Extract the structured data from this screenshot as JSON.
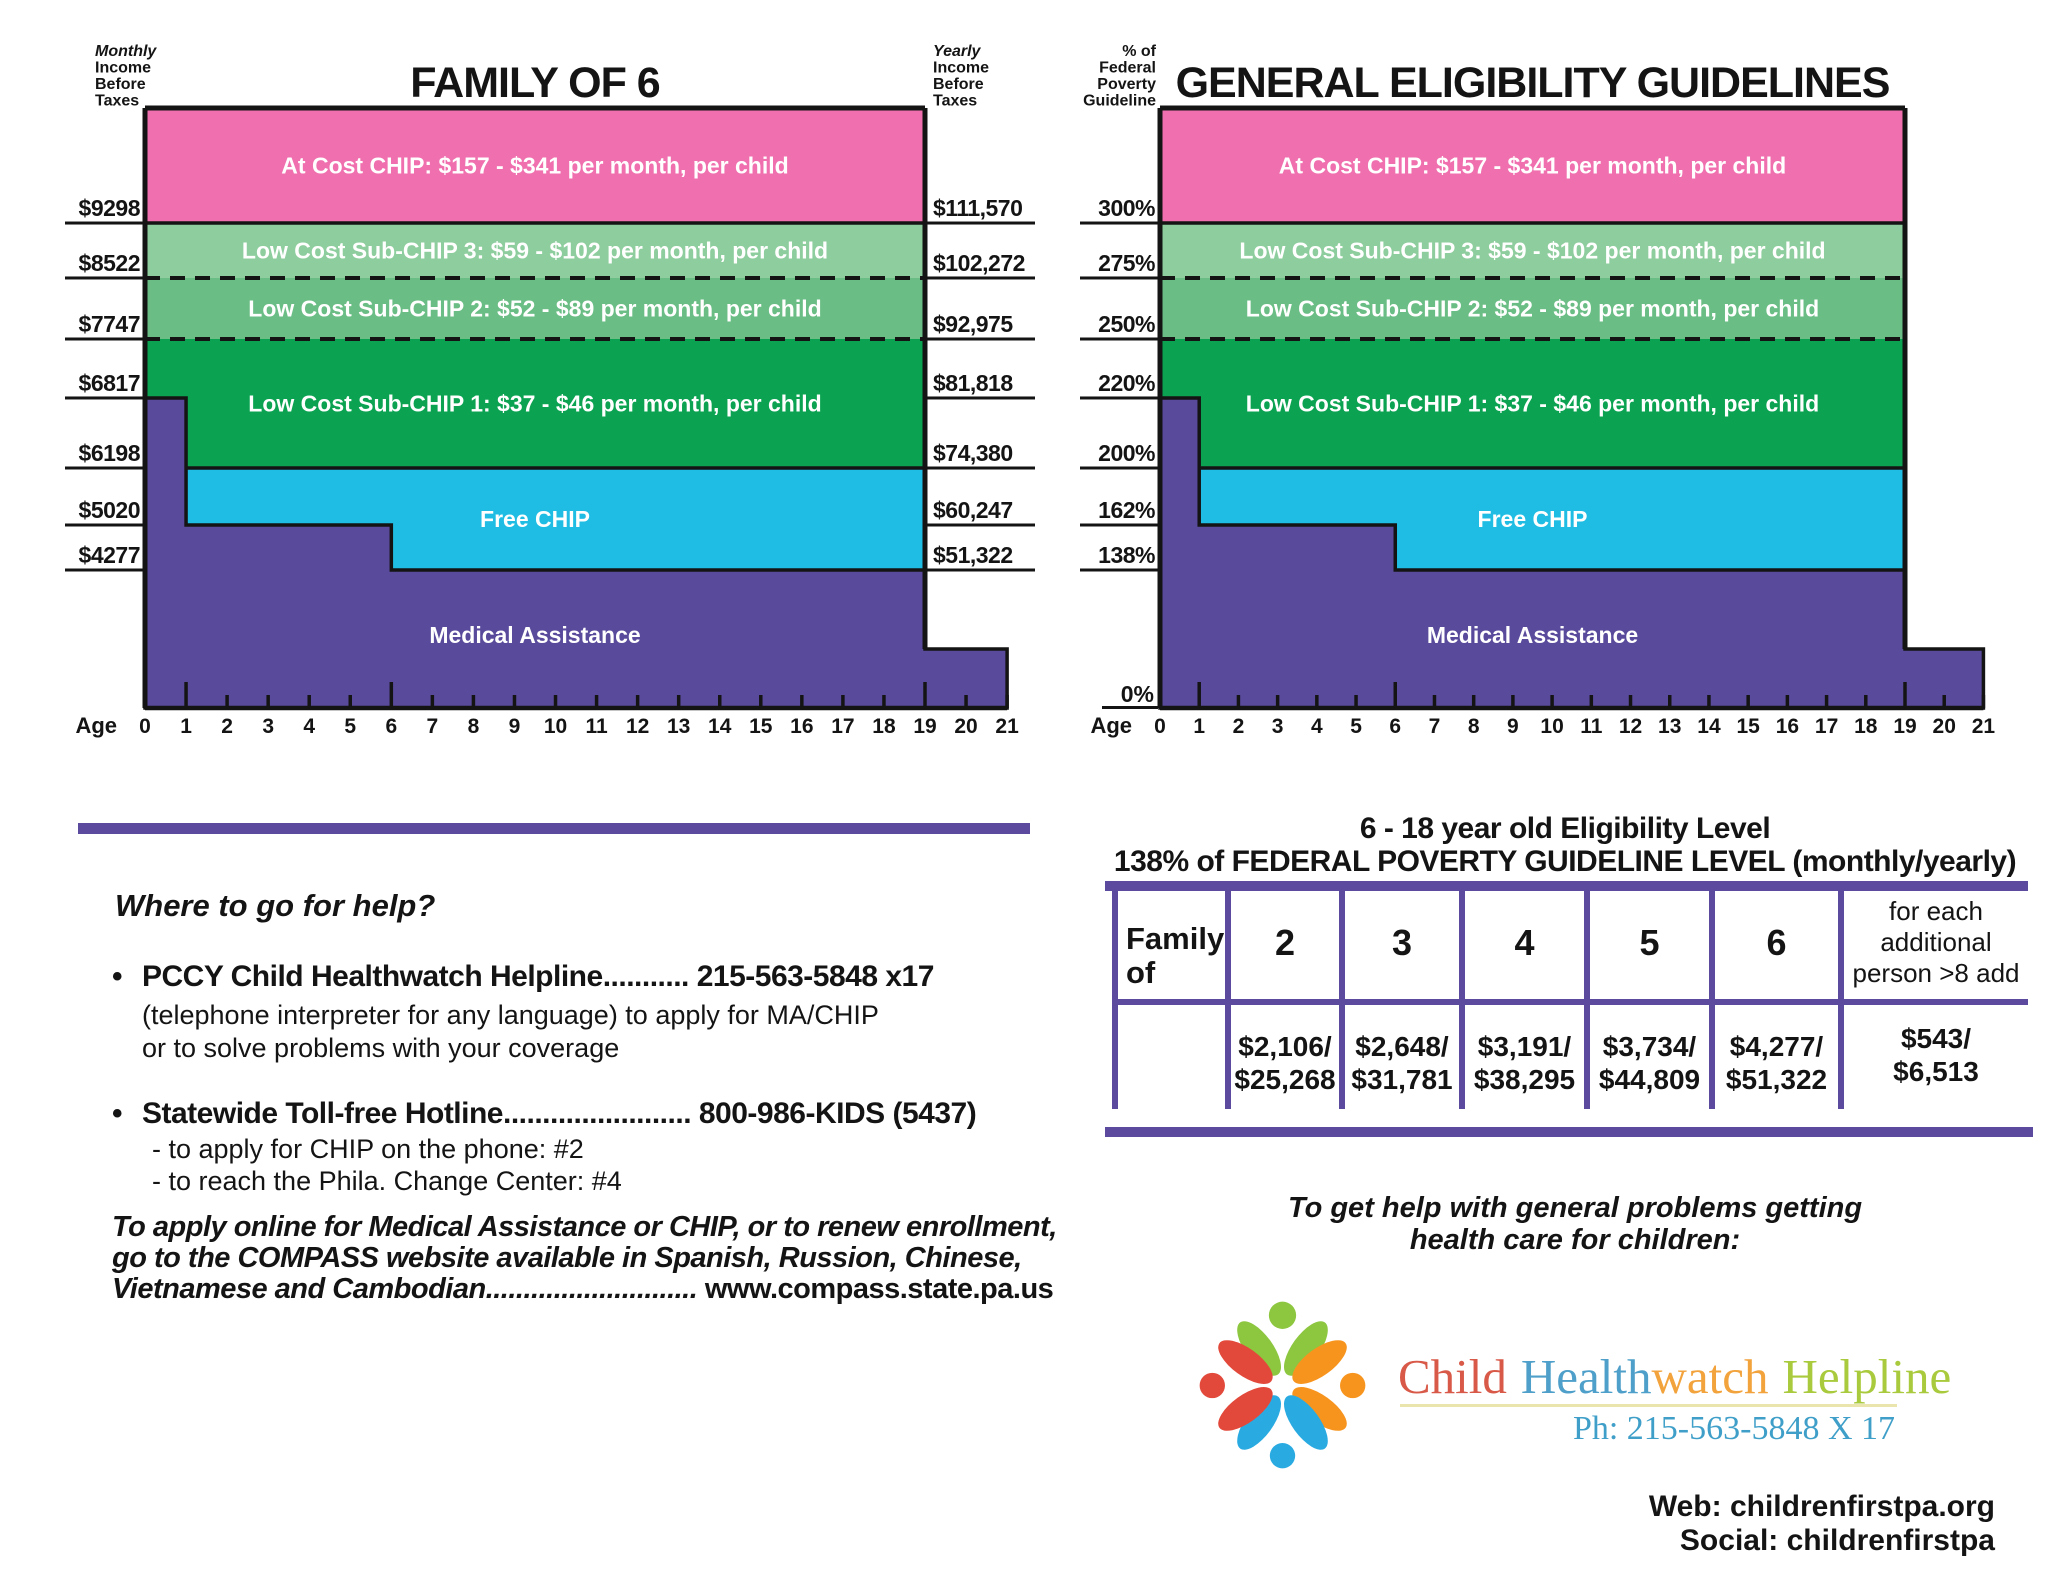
{
  "charts": [
    {
      "title": "FAMILY OF 6",
      "left_axis_header": [
        "Monthly",
        "Income",
        "Before",
        "Taxes"
      ],
      "left_axis_header_italic_first": true,
      "right_axis_header": [
        "Yearly",
        "Income",
        "Before",
        "Taxes"
      ],
      "left_labels": [
        "$9298",
        "$8522",
        "$7747",
        "$6817",
        "$6198",
        "$5020",
        "$4277"
      ],
      "right_labels": [
        "$111,570",
        "$102,272",
        "$92,975",
        "$81,818",
        "$74,380",
        "$60,247",
        "$51,322"
      ],
      "zero_label": ""
    },
    {
      "title": "GENERAL ELIGIBILITY GUIDELINES",
      "left_axis_header": [
        "% of",
        "Federal",
        "Poverty",
        "Guideline"
      ],
      "left_axis_header_italic_first": false,
      "right_axis_header": [],
      "left_labels": [
        "300%",
        "275%",
        "250%",
        "220%",
        "200%",
        "162%",
        "138%"
      ],
      "right_labels": [],
      "zero_label": "0%"
    }
  ],
  "chart_data": {
    "type": "area",
    "title": "PA CHIP / Medical Assistance eligibility by age and income, family of 6",
    "xlabel": "Age",
    "age_axis": {
      "label": "Age",
      "min": 0,
      "max": 21,
      "main_area_end_age": 19,
      "tall_tick_ages": [
        1,
        6,
        19
      ]
    },
    "levels": [
      {
        "pct": "300%",
        "monthly": "$9298",
        "yearly": "$111,570",
        "y_frac": 0.1917,
        "line": "solid"
      },
      {
        "pct": "275%",
        "monthly": "$8522",
        "yearly": "$102,272",
        "y_frac": 0.2833,
        "line": "dashed"
      },
      {
        "pct": "250%",
        "monthly": "$7747",
        "yearly": "$92,975",
        "y_frac": 0.385,
        "line": "dashed"
      },
      {
        "pct": "220%",
        "monthly": "$6817",
        "yearly": "$81,818",
        "y_frac": 0.4833,
        "line": "none"
      },
      {
        "pct": "200%",
        "monthly": "$6198",
        "yearly": "$74,380",
        "y_frac": 0.6,
        "line": "solid"
      },
      {
        "pct": "162%",
        "monthly": "$5020",
        "yearly": "$60,247",
        "y_frac": 0.695,
        "line": "none"
      },
      {
        "pct": "138%",
        "monthly": "$4277",
        "yearly": "$51,322",
        "y_frac": 0.77,
        "line": "none"
      }
    ],
    "ma_19_21_top_frac": 0.9017,
    "bands": [
      {
        "label": "At Cost CHIP: $157 - $341 per month, per child",
        "color": "#f06fae",
        "from": "top",
        "to": "300%"
      },
      {
        "label": "Low Cost Sub-CHIP 3: $59 - $102 per month, per child",
        "color": "#8ecd9d",
        "from": "300%",
        "to": "275%"
      },
      {
        "label": "Low Cost Sub-CHIP 2: $52 - $89 per month, per child",
        "color": "#6abd84",
        "from": "275%",
        "to": "250%"
      },
      {
        "label": "Low Cost Sub-CHIP 1: $37 - $46 per month, per child",
        "color": "#0ba351",
        "from": "250%",
        "to": "200%"
      },
      {
        "label": "Free CHIP",
        "color": "#1fbde3",
        "from": "200%",
        "to": "138%"
      },
      {
        "label": "Medical Assistance",
        "color": "#5a4a9c",
        "from": "138%",
        "to": "bottom"
      }
    ],
    "medical_assistance_steps": [
      {
        "age_from": 0,
        "age_to": 1,
        "top_level": "220%"
      },
      {
        "age_from": 1,
        "age_to": 6,
        "top_level": "162%"
      },
      {
        "age_from": 6,
        "age_to": 19,
        "top_level": "138%"
      },
      {
        "age_from": 19,
        "age_to": 21,
        "top_level": "low"
      }
    ]
  },
  "help": {
    "heading": "Where to go for help?",
    "bullet_glyph": "•",
    "items": [
      {
        "bold": "PCCY Child Healthwatch Helpline........... 215-563-5848 x17",
        "sub": [
          "(telephone interpreter for any language) to apply for MA/CHIP",
          "or to solve problems with your coverage"
        ]
      },
      {
        "bold": "Statewide Toll-free Hotline........................ 800-986-KIDS (5437)",
        "sub": [
          "- to apply for CHIP on the phone: #2",
          "- to reach the Phila. Change Center: #4"
        ]
      }
    ],
    "online_lines": [
      "To apply online for Medical Assistance or CHIP, or to renew enrollment,",
      "go to the COMPASS website available in Spanish, Russion, Chinese,"
    ],
    "online_last_italic": "Vietnamese and Cambodian............................",
    "online_url": " www.compass.state.pa.us"
  },
  "table": {
    "title_line1": "6 - 18 year old Eligibility Level",
    "title_line2": "138% of FEDERAL POVERTY GUIDELINE LEVEL (monthly/yearly)",
    "row_header": [
      "Family",
      "of"
    ],
    "columns": [
      {
        "header": "2",
        "monthly": "$2,106/",
        "yearly": "$25,268"
      },
      {
        "header": "3",
        "monthly": "$2,648/",
        "yearly": "$31,781"
      },
      {
        "header": "4",
        "monthly": "$3,191/",
        "yearly": "$38,295"
      },
      {
        "header": "5",
        "monthly": "$3,734/",
        "yearly": "$44,809"
      },
      {
        "header": "6",
        "monthly": "$4,277/",
        "yearly": "$51,322"
      }
    ],
    "extra_col": {
      "header_lines": [
        "for each",
        "additional",
        "person >8 add"
      ],
      "monthly": "$543/",
      "yearly": "$6,513"
    }
  },
  "footer": {
    "gethelp_line1": "To get help with general problems getting",
    "gethelp_line2": "health care for children:",
    "logo_words": [
      {
        "text": "Child",
        "color": "#d85948"
      },
      {
        "text": "Health",
        "color": "#4e9fc9"
      },
      {
        "text": "watch",
        "color": "#f2a33c"
      },
      {
        "text": "Helpline",
        "color": "#a9ca3c"
      }
    ],
    "logo_phone": "Ph: 215-563-5848 X 17",
    "web": "Web: childrenfirstpa.org",
    "social": "Social: childrenfirstpa"
  },
  "colors": {
    "accent_purple": "#5b4a9e",
    "pink": "#f06fae",
    "light_green": "#8ecd9d",
    "mid_green": "#6abd84",
    "green": "#0ba351",
    "cyan": "#1fbde3",
    "purple": "#5a4a9c",
    "logo_green": "#8dc63f",
    "logo_orange": "#f7941e",
    "logo_blue": "#29abe2",
    "logo_red": "#e2493b",
    "logo_underline": "#e9e5ad"
  }
}
